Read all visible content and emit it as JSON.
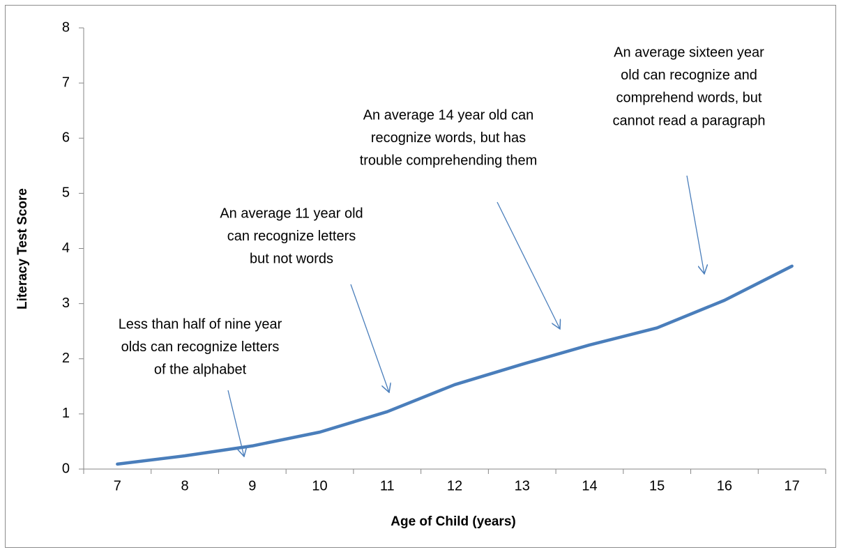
{
  "chart_data": {
    "type": "line",
    "x_label": "Age of Child (years)",
    "y_label": "Literacy Test Score",
    "categories": [
      "7",
      "8",
      "9",
      "10",
      "11",
      "12",
      "13",
      "14",
      "15",
      "16",
      "17"
    ],
    "series": [
      {
        "color": "#4a7ebb",
        "values": [
          0.09,
          0.24,
          0.42,
          0.67,
          1.04,
          1.53,
          1.9,
          2.25,
          2.56,
          3.06,
          3.68
        ]
      }
    ],
    "ylim": [
      0,
      8
    ],
    "yticks": [
      0,
      1,
      2,
      3,
      4,
      5,
      6,
      7,
      8
    ],
    "annotations": [
      {
        "lines": [
          "Less than half of nine year",
          "olds can recognize letters",
          "of the alphabet"
        ]
      },
      {
        "lines": [
          "An average 11 year old",
          "can recognize letters",
          "but not words"
        ]
      },
      {
        "lines": [
          "An average 14 year old can",
          "recognize words,  but has",
          "trouble comprehending them"
        ]
      },
      {
        "lines": [
          "An average sixteen year",
          "old can recognize and",
          "comprehend words, but",
          "cannot read a paragraph"
        ]
      }
    ]
  }
}
